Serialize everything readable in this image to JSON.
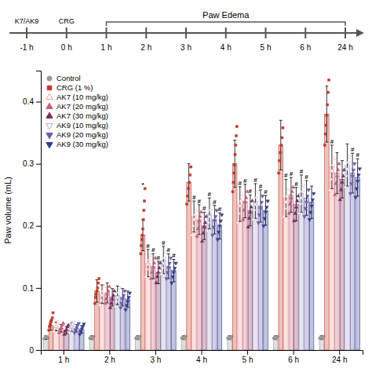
{
  "chart_data": {
    "type": "bar",
    "ylabel": "Paw volume (mL)",
    "categories": [
      "1 h",
      "2 h",
      "3 h",
      "4 h",
      "5 h",
      "6 h",
      "24 h"
    ],
    "ylim": [
      0,
      0.45
    ],
    "yticks": [
      0,
      0.1,
      0.2,
      0.3,
      0.4
    ],
    "grid": false,
    "legend": "upper-left",
    "series": [
      {
        "name": "Control",
        "color": "#999999",
        "marker": "circle",
        "values": [
          0.02,
          0.02,
          0.02,
          0.02,
          0.02,
          0.02,
          0.02
        ],
        "errors": [
          0.003,
          0.003,
          0.003,
          0.003,
          0.003,
          0.003,
          0.003
        ],
        "points": [
          [
            0.018,
            0.02,
            0.021,
            0.022,
            0.019
          ],
          [
            0.019,
            0.021,
            0.02,
            0.018,
            0.022
          ],
          [
            0.019,
            0.021,
            0.02,
            0.018,
            0.022
          ],
          [
            0.019,
            0.021,
            0.02,
            0.018,
            0.022
          ],
          [
            0.019,
            0.021,
            0.02,
            0.018,
            0.022
          ],
          [
            0.019,
            0.021,
            0.02,
            0.018,
            0.022
          ],
          [
            0.019,
            0.021,
            0.02,
            0.018,
            0.022
          ]
        ]
      },
      {
        "name": "CRG (1 %)",
        "color": "#C0392B",
        "marker": "square",
        "values": [
          0.04,
          0.095,
          0.185,
          0.27,
          0.3,
          0.33,
          0.38
        ],
        "errors": [
          0.008,
          0.018,
          0.025,
          0.03,
          0.038,
          0.04,
          0.045
        ],
        "points": [
          [
            0.032,
            0.038,
            0.042,
            0.045,
            0.048,
            0.052,
            0.06
          ],
          [
            0.075,
            0.085,
            0.09,
            0.095,
            0.1,
            0.108,
            0.115
          ],
          [
            0.155,
            0.168,
            0.178,
            0.185,
            0.195,
            0.21,
            0.225,
            0.24,
            0.26
          ],
          [
            0.235,
            0.248,
            0.26,
            0.27,
            0.282,
            0.295
          ],
          [
            0.255,
            0.27,
            0.285,
            0.298,
            0.315,
            0.33,
            0.345,
            0.36
          ],
          [
            0.285,
            0.305,
            0.318,
            0.33,
            0.342,
            0.358
          ],
          [
            0.33,
            0.348,
            0.362,
            0.378,
            0.395,
            0.415,
            0.435
          ]
        ]
      },
      {
        "name": "AK7 (10 mg/kg)",
        "color": "#F4A0A0",
        "marker": "triangle-up-open",
        "values": [
          0.038,
          0.09,
          0.14,
          0.215,
          0.235,
          0.245,
          0.295
        ],
        "errors": [
          0.007,
          0.015,
          0.022,
          0.025,
          0.028,
          0.03,
          0.035
        ],
        "points": [
          [
            0.03,
            0.035,
            0.038,
            0.042,
            0.045
          ],
          [
            0.072,
            0.08,
            0.088,
            0.095,
            0.102
          ],
          [
            0.118,
            0.13,
            0.138,
            0.145,
            0.152
          ],
          [
            0.185,
            0.2,
            0.21,
            0.218,
            0.225
          ],
          [
            0.205,
            0.22,
            0.232,
            0.24,
            0.25
          ],
          [
            0.215,
            0.228,
            0.238,
            0.248,
            0.258
          ],
          [
            0.258,
            0.275,
            0.288,
            0.298,
            0.308
          ]
        ]
      },
      {
        "name": "AK7 (20 mg/kg)",
        "color": "#C1607A",
        "marker": "triangle-up",
        "values": [
          0.035,
          0.092,
          0.135,
          0.21,
          0.24,
          0.25,
          0.285
        ],
        "errors": [
          0.006,
          0.016,
          0.02,
          0.024,
          0.027,
          0.028,
          0.033
        ],
        "points": [
          [
            0.028,
            0.033,
            0.036,
            0.04,
            0.043
          ],
          [
            0.075,
            0.082,
            0.09,
            0.095,
            0.102
          ],
          [
            0.115,
            0.125,
            0.133,
            0.14,
            0.148
          ],
          [
            0.183,
            0.195,
            0.208,
            0.215,
            0.222
          ],
          [
            0.21,
            0.225,
            0.238,
            0.245,
            0.255
          ],
          [
            0.22,
            0.235,
            0.245,
            0.255,
            0.262
          ],
          [
            0.25,
            0.268,
            0.28,
            0.29,
            0.3
          ]
        ]
      },
      {
        "name": "AK7 (30 mg/kg)",
        "color": "#7B2D5E",
        "marker": "triangle-up",
        "values": [
          0.032,
          0.085,
          0.125,
          0.2,
          0.225,
          0.235,
          0.275
        ],
        "errors": [
          0.006,
          0.014,
          0.018,
          0.022,
          0.025,
          0.027,
          0.03
        ],
        "points": [
          [
            0.025,
            0.03,
            0.033,
            0.037,
            0.04
          ],
          [
            0.068,
            0.075,
            0.082,
            0.088,
            0.095
          ],
          [
            0.108,
            0.118,
            0.125,
            0.132,
            0.14
          ],
          [
            0.175,
            0.188,
            0.198,
            0.205,
            0.215
          ],
          [
            0.198,
            0.212,
            0.222,
            0.23,
            0.24
          ],
          [
            0.208,
            0.22,
            0.23,
            0.24,
            0.248
          ],
          [
            0.242,
            0.258,
            0.27,
            0.28,
            0.29
          ]
        ]
      },
      {
        "name": "AK9 (10 mg/kg)",
        "color": "#AAAACC",
        "marker": "triangle-down-open",
        "values": [
          0.037,
          0.088,
          0.145,
          0.22,
          0.24,
          0.252,
          0.298
        ],
        "errors": [
          0.007,
          0.015,
          0.022,
          0.025,
          0.028,
          0.03,
          0.034
        ],
        "points": [
          [
            0.028,
            0.033,
            0.038,
            0.042,
            0.045
          ],
          [
            0.07,
            0.078,
            0.085,
            0.092,
            0.1
          ],
          [
            0.122,
            0.132,
            0.14,
            0.148,
            0.158
          ],
          [
            0.192,
            0.205,
            0.215,
            0.225,
            0.235
          ],
          [
            0.21,
            0.225,
            0.235,
            0.245,
            0.255
          ],
          [
            0.22,
            0.235,
            0.245,
            0.255,
            0.265
          ],
          [
            0.262,
            0.28,
            0.292,
            0.302,
            0.312
          ]
        ]
      },
      {
        "name": "AK9 (20 mg/kg)",
        "color": "#6A5DA8",
        "marker": "triangle-down",
        "values": [
          0.035,
          0.085,
          0.135,
          0.21,
          0.232,
          0.245,
          0.285
        ],
        "errors": [
          0.006,
          0.014,
          0.02,
          0.023,
          0.026,
          0.028,
          0.032
        ],
        "points": [
          [
            0.028,
            0.032,
            0.036,
            0.04,
            0.043
          ],
          [
            0.068,
            0.075,
            0.082,
            0.088,
            0.095
          ],
          [
            0.115,
            0.125,
            0.132,
            0.14,
            0.148
          ],
          [
            0.185,
            0.198,
            0.208,
            0.215,
            0.225
          ],
          [
            0.205,
            0.218,
            0.228,
            0.238,
            0.248
          ],
          [
            0.215,
            0.228,
            0.238,
            0.248,
            0.258
          ],
          [
            0.252,
            0.268,
            0.28,
            0.29,
            0.3
          ]
        ]
      },
      {
        "name": "AK9 (30 mg/kg)",
        "color": "#2E3F8F",
        "marker": "triangle-down",
        "values": [
          0.033,
          0.082,
          0.128,
          0.2,
          0.225,
          0.238,
          0.278
        ],
        "errors": [
          0.006,
          0.013,
          0.018,
          0.021,
          0.024,
          0.026,
          0.03
        ],
        "points": [
          [
            0.025,
            0.03,
            0.034,
            0.038,
            0.042
          ],
          [
            0.065,
            0.072,
            0.078,
            0.085,
            0.092
          ],
          [
            0.108,
            0.118,
            0.125,
            0.132,
            0.14
          ],
          [
            0.178,
            0.19,
            0.2,
            0.208,
            0.218
          ],
          [
            0.2,
            0.212,
            0.222,
            0.23,
            0.24
          ],
          [
            0.21,
            0.222,
            0.232,
            0.242,
            0.252
          ],
          [
            0.246,
            0.26,
            0.272,
            0.282,
            0.292
          ]
        ]
      }
    ],
    "annotations": [
      {
        "x": "3 h",
        "series": "CRG (1 %)",
        "text": "*"
      },
      {
        "x": "3 h",
        "series": "AK7 (10 mg/kg)",
        "text": "#"
      },
      {
        "x": "3 h",
        "series": "AK7 (20 mg/kg)",
        "text": "#"
      },
      {
        "x": "3 h",
        "series": "AK7 (30 mg/kg)",
        "text": "#"
      },
      {
        "x": "3 h",
        "series": "AK9 (10 mg/kg)",
        "text": "#"
      },
      {
        "x": "3 h",
        "series": "AK9 (20 mg/kg)",
        "text": "#"
      },
      {
        "x": "3 h",
        "series": "AK9 (30 mg/kg)",
        "text": "#"
      },
      {
        "x": "4 h",
        "series": "AK7 (10 mg/kg)",
        "text": "#"
      },
      {
        "x": "4 h",
        "series": "AK7 (20 mg/kg)",
        "text": "#"
      },
      {
        "x": "4 h",
        "series": "AK7 (30 mg/kg)",
        "text": "#"
      },
      {
        "x": "4 h",
        "series": "AK9 (10 mg/kg)",
        "text": "#"
      },
      {
        "x": "4 h",
        "series": "AK9 (20 mg/kg)",
        "text": "#"
      },
      {
        "x": "4 h",
        "series": "AK9 (30 mg/kg)",
        "text": "#"
      },
      {
        "x": "5 h",
        "series": "AK7 (10 mg/kg)",
        "text": "#"
      },
      {
        "x": "5 h",
        "series": "AK7 (20 mg/kg)",
        "text": "#"
      },
      {
        "x": "5 h",
        "series": "AK7 (30 mg/kg)",
        "text": "#"
      },
      {
        "x": "5 h",
        "series": "AK9 (10 mg/kg)",
        "text": "#"
      },
      {
        "x": "5 h",
        "series": "AK9 (20 mg/kg)",
        "text": "#"
      },
      {
        "x": "5 h",
        "series": "AK9 (30 mg/kg)",
        "text": "#"
      },
      {
        "x": "6 h",
        "series": "AK7 (10 mg/kg)",
        "text": "#"
      },
      {
        "x": "6 h",
        "series": "AK7 (20 mg/kg)",
        "text": "#"
      },
      {
        "x": "6 h",
        "series": "AK7 (30 mg/kg)",
        "text": "#"
      },
      {
        "x": "6 h",
        "series": "AK9 (10 mg/kg)",
        "text": "#"
      },
      {
        "x": "6 h",
        "series": "AK9 (20 mg/kg)",
        "text": "#"
      },
      {
        "x": "24 h",
        "series": "AK7 (10 mg/kg)",
        "text": "#"
      },
      {
        "x": "24 h",
        "series": "AK9 (20 mg/kg)",
        "text": "#"
      },
      {
        "x": "24 h",
        "series": "AK9 (30 mg/kg)",
        "text": "#"
      }
    ],
    "timeline": {
      "labels": [
        "-1 h",
        "0 h",
        "1 h",
        "2 h",
        "3 h",
        "4 h",
        "5 h",
        "6 h",
        "24 h"
      ],
      "annotations": [
        {
          "at": "-1 h",
          "text": "K7/AK9"
        },
        {
          "at": "0 h",
          "text": "CRG"
        }
      ],
      "bracket": {
        "from": "1 h",
        "to": "24 h",
        "text": "Paw Edema"
      }
    }
  }
}
